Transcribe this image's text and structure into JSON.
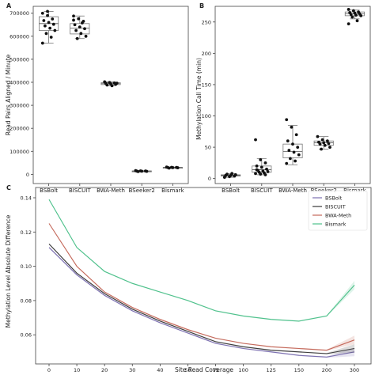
{
  "panels": {
    "a": {
      "letter": "A",
      "ylabel": "Read Pairs Aligned / Minute",
      "yticks": [
        0,
        100000,
        200000,
        300000,
        400000,
        500000,
        600000,
        700000
      ],
      "ytick_labels": [
        "0",
        "100000",
        "200000",
        "300000",
        "400000",
        "500000",
        "600000",
        "700000"
      ]
    },
    "b": {
      "letter": "B",
      "ylabel": "Methylation Call Time (min)",
      "yticks": [
        0,
        50,
        100,
        150,
        200,
        250
      ],
      "ytick_labels": [
        "0",
        "50",
        "100",
        "150",
        "200",
        "250"
      ]
    },
    "c": {
      "letter": "C",
      "ylabel": "Methylation Level Absolute Difference",
      "xlabel": "Site Read Coverage",
      "xtick_labels": [
        "0",
        "10",
        "20",
        "30",
        "40",
        "50",
        "75",
        "100",
        "125",
        "150",
        "200",
        "300"
      ],
      "yticks": [
        0.06,
        0.08,
        0.1,
        0.12,
        0.14
      ],
      "ytick_labels": [
        "0.06",
        "0.08",
        "0.10",
        "0.12",
        "0.14"
      ]
    }
  },
  "colors": {
    "BSBolt": "#7b6fb0",
    "BISCUIT": "#3a3a3a",
    "BWA-Meth": "#c4685a",
    "Bismark": "#4cc08a"
  },
  "chart_data": [
    {
      "type": "box",
      "panel": "A",
      "ylabel": "Read Pairs Aligned / Minute",
      "ylim": [
        -40000,
        730000
      ],
      "categories": [
        "BSBolt",
        "BISCUIT",
        "BWA-Meth",
        "BSeeker2",
        "Bismark"
      ],
      "boxes": [
        {
          "min": 570000,
          "q1": 625000,
          "median": 655000,
          "q3": 685000,
          "max": 708000
        },
        {
          "min": 590000,
          "q1": 610000,
          "median": 635000,
          "q3": 655000,
          "max": 688000
        },
        {
          "min": 385000,
          "q1": 390000,
          "median": 394000,
          "q3": 398000,
          "max": 402000
        },
        {
          "min": 12000,
          "q1": 13000,
          "median": 14000,
          "q3": 15000,
          "max": 16000
        },
        {
          "min": 27000,
          "q1": 28500,
          "median": 29500,
          "q3": 30500,
          "max": 31500
        }
      ],
      "points": [
        [
          700000,
          690000,
          675000,
          668000,
          660000,
          652000,
          645000,
          635000,
          625000,
          612000,
          596000,
          570000,
          708000
        ],
        [
          688000,
          676000,
          665000,
          650000,
          640000,
          633000,
          625000,
          612000,
          600000,
          590000,
          658000,
          670000
        ],
        [
          402000,
          399000,
          397000,
          395000,
          393000,
          391000,
          388000,
          385000,
          396000
        ],
        [
          16000,
          15000,
          14500,
          14000,
          13500,
          13000,
          12000
        ],
        [
          31500,
          30500,
          30000,
          29500,
          29000,
          28500,
          27000
        ]
      ]
    },
    {
      "type": "box",
      "panel": "B",
      "ylabel": "Methylation Call Time (min)",
      "ylim": [
        -8,
        275
      ],
      "categories": [
        "BSBolt",
        "BISCUIT",
        "BWA-Meth",
        "BSeeker2",
        "Bismark"
      ],
      "boxes": [
        {
          "min": 2,
          "q1": 4,
          "median": 5,
          "q3": 6,
          "max": 8
        },
        {
          "min": 6,
          "q1": 10,
          "median": 14,
          "q3": 20,
          "max": 32
        },
        {
          "min": 22,
          "q1": 33,
          "median": 43,
          "q3": 55,
          "max": 85
        },
        {
          "min": 47,
          "q1": 53,
          "median": 57,
          "q3": 60,
          "max": 67
        },
        {
          "min": 255,
          "q1": 260,
          "median": 263,
          "q3": 266,
          "max": 269
        }
      ],
      "points": [
        [
          2,
          3,
          4,
          5,
          5,
          6,
          7,
          8
        ],
        [
          62,
          30,
          25,
          20,
          18,
          15,
          13,
          12,
          11,
          10,
          9,
          8,
          7,
          6,
          14
        ],
        [
          94,
          82,
          70,
          60,
          55,
          50,
          45,
          42,
          38,
          32,
          28,
          24
        ],
        [
          67,
          62,
          60,
          58,
          57,
          56,
          55,
          53,
          50,
          47
        ],
        [
          270,
          268,
          266,
          265,
          264,
          263,
          262,
          261,
          260,
          258,
          252,
          247
        ]
      ]
    },
    {
      "type": "line",
      "panel": "C",
      "xlabel": "Site Read Coverage",
      "ylabel": "Methylation Level Absolute Difference",
      "x": [
        "0",
        "10",
        "20",
        "30",
        "40",
        "50",
        "75",
        "100",
        "125",
        "150",
        "200",
        "300"
      ],
      "ylim": [
        0.043,
        0.146
      ],
      "legend": "top-right",
      "series": [
        {
          "name": "BSBolt",
          "values": [
            0.111,
            0.095,
            0.083,
            0.074,
            0.067,
            0.061,
            0.055,
            0.052,
            0.05,
            0.048,
            0.047,
            0.05
          ]
        },
        {
          "name": "BISCUIT",
          "values": [
            0.113,
            0.096,
            0.084,
            0.075,
            0.068,
            0.062,
            0.056,
            0.053,
            0.051,
            0.05,
            0.049,
            0.052
          ]
        },
        {
          "name": "BWA-Meth",
          "values": [
            0.125,
            0.1,
            0.085,
            0.076,
            0.069,
            0.063,
            0.058,
            0.055,
            0.053,
            0.052,
            0.051,
            0.057
          ]
        },
        {
          "name": "Bismark",
          "values": [
            0.139,
            0.111,
            0.097,
            0.09,
            0.085,
            0.08,
            0.074,
            0.071,
            0.069,
            0.068,
            0.071,
            0.089
          ]
        }
      ]
    }
  ]
}
